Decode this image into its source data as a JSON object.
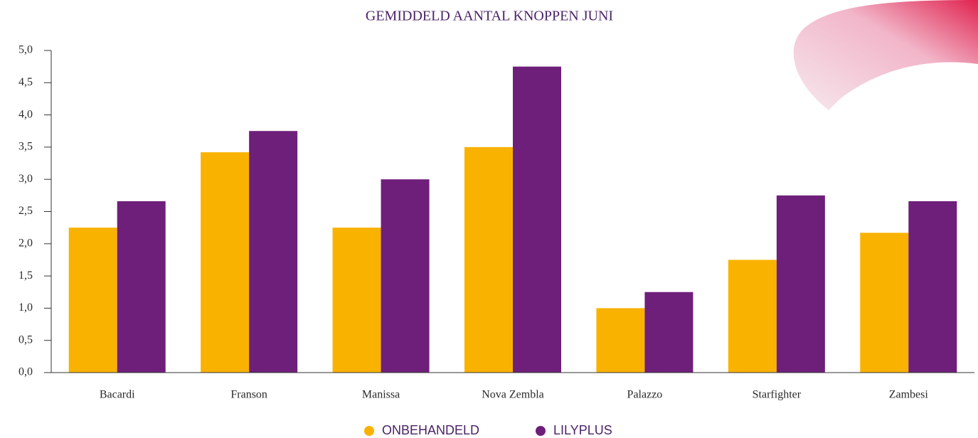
{
  "chart_data": {
    "type": "bar",
    "title": "GEMIDDELD AANTAL KNOPPEN JUNI",
    "categories": [
      "Bacardi",
      "Franson",
      "Manissa",
      "Nova Zembla",
      "Palazzo",
      "Starfighter",
      "Zambesi"
    ],
    "series": [
      {
        "name": "ONBEHANDELD",
        "color": "#f9b200",
        "values": [
          2.25,
          3.42,
          2.25,
          3.5,
          1.0,
          1.75,
          2.17
        ]
      },
      {
        "name": "LILYPLUS",
        "color": "#6e1f7a",
        "values": [
          2.66,
          3.75,
          3.0,
          4.75,
          1.25,
          2.75,
          2.66
        ]
      }
    ],
    "ylim": [
      0,
      5
    ],
    "yticks": [
      {
        "value": 0,
        "label": "0,0"
      },
      {
        "value": 0.5,
        "label": "0,5"
      },
      {
        "value": 1,
        "label": "1,0"
      },
      {
        "value": 1.5,
        "label": "1,5"
      },
      {
        "value": 2,
        "label": "2,0"
      },
      {
        "value": 2.5,
        "label": "2,5"
      },
      {
        "value": 3,
        "label": "3,0"
      },
      {
        "value": 3.5,
        "label": "3,5"
      },
      {
        "value": 4,
        "label": "4,0"
      },
      {
        "value": 4.5,
        "label": "4,5"
      },
      {
        "value": 5,
        "label": "5,0"
      }
    ],
    "grid": false
  }
}
